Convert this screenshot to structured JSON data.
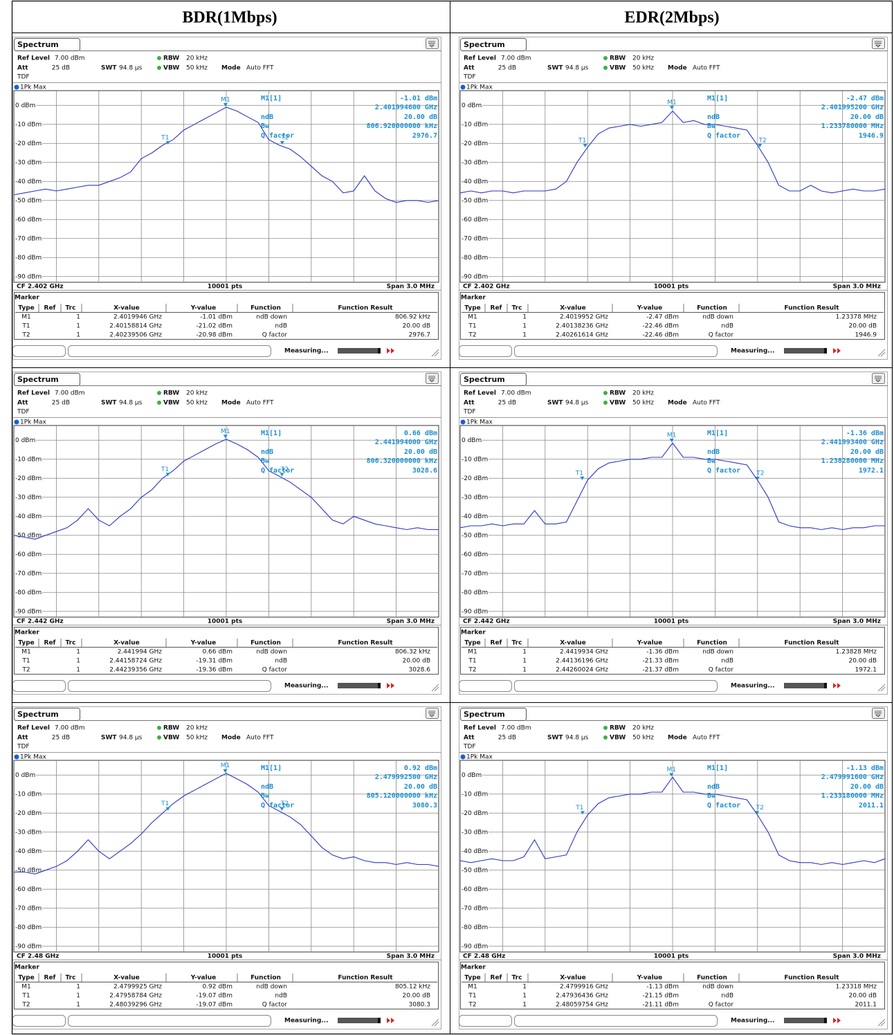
{
  "screen_common": {
    "tab": "Spectrum",
    "ref_level_label": "Ref Level",
    "ref_level": "7.00 dBm",
    "rbw_label": "RBW",
    "rbw": "20 kHz",
    "att_label": "Att",
    "att": "25 dB",
    "swt_label": "SWT",
    "swt": "94.8 µs",
    "vbw_label": "VBW",
    "vbw": "50 kHz",
    "mode_label": "Mode",
    "mode": "Auto FFT",
    "tdf": "TDF",
    "trace_label": "1Pk Max",
    "ylim": [
      -93,
      7
    ],
    "yticks": [
      {
        "value": 0,
        "label": "0 dBm"
      },
      {
        "value": -10,
        "label": "-10 dBm"
      },
      {
        "value": -20,
        "label": "-20 dBm"
      },
      {
        "value": -30,
        "label": "-30 dBm"
      },
      {
        "value": -40,
        "label": "-40 dBm"
      },
      {
        "value": -50,
        "label": "-50 dBm"
      },
      {
        "value": -60,
        "label": "-60 dBm"
      },
      {
        "value": -70,
        "label": "-70 dBm"
      },
      {
        "value": -80,
        "label": "-80 dBm"
      },
      {
        "value": -90,
        "label": "-90 dBm"
      }
    ],
    "pts": "10001 pts",
    "span": {
      "value": 3,
      "label": "Span 3.0 MHz"
    },
    "ndb_label": "ndB",
    "bw_label": "Bw",
    "q_label": "Q factor",
    "marker_title": "Marker",
    "marker_columns": [
      "Type",
      "Ref",
      "Trc",
      "X-value",
      "Y-value",
      "Function",
      "Function Result"
    ],
    "status": "Measuring..."
  },
  "table": {
    "headers": [
      "BDR(1Mbps)",
      "EDR(2Mbps)"
    ],
    "rows": [
      [
        {
          "cf": {
            "value": 2.402,
            "label": "CF 2.402 GHz"
          },
          "readout": {
            "label": "M1[1]",
            "level": "-1.01 dBm",
            "freq": "2.401994600 GHz",
            "ndb": "20.00 dB",
            "bw": "806.920000000 kHz",
            "q": "2976.7"
          },
          "trace": [
            -47,
            -46,
            -45,
            -44,
            -45,
            -44,
            -43,
            -42,
            -42,
            -40,
            -38,
            -35,
            -28,
            -25,
            -21,
            -18,
            -13,
            -10,
            -7,
            -4,
            -1,
            -3,
            -6,
            -9,
            -18,
            -21,
            -23,
            -27,
            -32,
            -37,
            -40,
            -46,
            -45,
            -37,
            -45,
            -49,
            -51,
            -50,
            -50,
            -51,
            -50
          ],
          "markers": [
            {
              "type": "M1",
              "trc": "1",
              "x": {
                "value": 2.4019946,
                "label": "2.4019946 GHz"
              },
              "y": {
                "value": -1.01,
                "label": "-1.01 dBm"
              },
              "function": "ndB down",
              "result": "806.92 kHz"
            },
            {
              "type": "T1",
              "trc": "1",
              "x": {
                "value": 2.40158814,
                "label": "2.40158814 GHz"
              },
              "y": {
                "value": -21.02,
                "label": "-21.02 dBm"
              },
              "function": "ndB",
              "result": "20.00 dB"
            },
            {
              "type": "T2",
              "trc": "1",
              "x": {
                "value": 2.40239506,
                "label": "2.40239506 GHz"
              },
              "y": {
                "value": -20.98,
                "label": "-20.98 dBm"
              },
              "function": "Q factor",
              "result": "2976.7"
            }
          ]
        },
        {
          "cf": {
            "value": 2.402,
            "label": "CF 2.402 GHz"
          },
          "readout": {
            "label": "M1[1]",
            "level": "-2.47 dBm",
            "freq": "2.401995200 GHz",
            "ndb": "20.00 dB",
            "bw": "1.233780000 MHz",
            "q": "1946.9"
          },
          "trace": [
            -46,
            -45,
            -46,
            -45,
            -45,
            -46,
            -45,
            -45,
            -45,
            -44,
            -40,
            -30,
            -22,
            -15,
            -12,
            -11,
            -10,
            -11,
            -10,
            -9,
            -3,
            -9,
            -8,
            -10,
            -10,
            -11,
            -12,
            -13,
            -21,
            -30,
            -42,
            -45,
            -45,
            -42,
            -45,
            -46,
            -45,
            -44,
            -45,
            -45,
            -44
          ],
          "markers": [
            {
              "type": "M1",
              "trc": "1",
              "x": {
                "value": 2.4019952,
                "label": "2.4019952 GHz"
              },
              "y": {
                "value": -2.47,
                "label": "-2.47 dBm"
              },
              "function": "ndB down",
              "result": "1.23378 MHz"
            },
            {
              "type": "T1",
              "trc": "1",
              "x": {
                "value": 2.40138236,
                "label": "2.40138236 GHz"
              },
              "y": {
                "value": -22.46,
                "label": "-22.46 dBm"
              },
              "function": "ndB",
              "result": "20.00 dB"
            },
            {
              "type": "T2",
              "trc": "1",
              "x": {
                "value": 2.40261614,
                "label": "2.40261614 GHz"
              },
              "y": {
                "value": -22.46,
                "label": "-22.46 dBm"
              },
              "function": "Q factor",
              "result": "1946.9"
            }
          ]
        }
      ],
      [
        {
          "cf": {
            "value": 2.442,
            "label": "CF 2.442 GHz"
          },
          "readout": {
            "label": "M1[1]",
            "level": "0.66 dBm",
            "freq": "2.441994000 GHz",
            "ndb": "20.00 dB",
            "bw": "806.320000000 kHz",
            "q": "3028.6"
          },
          "trace": [
            -50,
            -51,
            -52,
            -50,
            -48,
            -46,
            -42,
            -36,
            -42,
            -45,
            -40,
            -36,
            -30,
            -26,
            -20,
            -16,
            -11,
            -8,
            -5,
            -2,
            0.5,
            -2,
            -5,
            -9,
            -16,
            -19,
            -22,
            -26,
            -30,
            -36,
            -42,
            -44,
            -40,
            -42,
            -44,
            -45,
            -46,
            -47,
            -46,
            -47,
            -47
          ],
          "markers": [
            {
              "type": "M1",
              "trc": "1",
              "x": {
                "value": 2.441994,
                "label": "2.441994 GHz"
              },
              "y": {
                "value": 0.66,
                "label": "0.66 dBm"
              },
              "function": "ndB down",
              "result": "806.32 kHz"
            },
            {
              "type": "T1",
              "trc": "1",
              "x": {
                "value": 2.44158724,
                "label": "2.44158724 GHz"
              },
              "y": {
                "value": -19.31,
                "label": "-19.31 dBm"
              },
              "function": "ndB",
              "result": "20.00 dB"
            },
            {
              "type": "T2",
              "trc": "1",
              "x": {
                "value": 2.44239356,
                "label": "2.44239356 GHz"
              },
              "y": {
                "value": -19.36,
                "label": "-19.36 dBm"
              },
              "function": "Q factor",
              "result": "3028.6"
            }
          ]
        },
        {
          "cf": {
            "value": 2.442,
            "label": "CF 2.442 GHz"
          },
          "readout": {
            "label": "M1[1]",
            "level": "-1.36 dBm",
            "freq": "2.441993400 GHz",
            "ndb": "20.00 dB",
            "bw": "1.238280000 MHz",
            "q": "1972.1"
          },
          "trace": [
            -46,
            -45,
            -45,
            -44,
            -45,
            -44,
            -44,
            -37,
            -44,
            -44,
            -43,
            -32,
            -21,
            -15,
            -12,
            -11,
            -10,
            -10,
            -9,
            -9,
            -1.5,
            -9,
            -9,
            -10,
            -10,
            -11,
            -12,
            -13,
            -21,
            -30,
            -43,
            -45,
            -46,
            -46,
            -47,
            -46,
            -47,
            -46,
            -46,
            -45,
            -45
          ],
          "markers": [
            {
              "type": "M1",
              "trc": "1",
              "x": {
                "value": 2.4419934,
                "label": "2.4419934 GHz"
              },
              "y": {
                "value": -1.36,
                "label": "-1.36 dBm"
              },
              "function": "ndB down",
              "result": "1.23828 MHz"
            },
            {
              "type": "T1",
              "trc": "1",
              "x": {
                "value": 2.44136196,
                "label": "2.44136196 GHz"
              },
              "y": {
                "value": -21.33,
                "label": "-21.33 dBm"
              },
              "function": "ndB",
              "result": "20.00 dB"
            },
            {
              "type": "T2",
              "trc": "1",
              "x": {
                "value": 2.44260024,
                "label": "2.44260024 GHz"
              },
              "y": {
                "value": -21.37,
                "label": "-21.37 dBm"
              },
              "function": "Q factor",
              "result": "1972.1"
            }
          ]
        }
      ],
      [
        {
          "cf": {
            "value": 2.48,
            "label": "CF 2.48 GHz"
          },
          "readout": {
            "label": "M1[1]",
            "level": "0.92 dBm",
            "freq": "2.479992500 GHz",
            "ndb": "20.00 dB",
            "bw": "805.120000000 kHz",
            "q": "3080.3"
          },
          "trace": [
            -51,
            -51,
            -52,
            -50,
            -48,
            -45,
            -40,
            -34,
            -40,
            -44,
            -40,
            -36,
            -31,
            -25,
            -20,
            -15,
            -11,
            -8,
            -5,
            -2,
            0.9,
            -2,
            -5,
            -9,
            -16,
            -19,
            -22,
            -26,
            -32,
            -38,
            -42,
            -44,
            -43,
            -45,
            -46,
            -46,
            -47,
            -46,
            -47,
            -47,
            -48
          ],
          "markers": [
            {
              "type": "M1",
              "trc": "1",
              "x": {
                "value": 2.4799925,
                "label": "2.4799925 GHz"
              },
              "y": {
                "value": 0.92,
                "label": "0.92 dBm"
              },
              "function": "ndB down",
              "result": "805.12 kHz"
            },
            {
              "type": "T1",
              "trc": "1",
              "x": {
                "value": 2.47958784,
                "label": "2.47958784 GHz"
              },
              "y": {
                "value": -19.07,
                "label": "-19.07 dBm"
              },
              "function": "ndB",
              "result": "20.00 dB"
            },
            {
              "type": "T2",
              "trc": "1",
              "x": {
                "value": 2.48039296,
                "label": "2.48039296 GHz"
              },
              "y": {
                "value": -19.07,
                "label": "-19.07 dBm"
              },
              "function": "Q factor",
              "result": "3080.3"
            }
          ]
        },
        {
          "cf": {
            "value": 2.48,
            "label": "CF 2.48 GHz"
          },
          "readout": {
            "label": "M1[1]",
            "level": "-1.13 dBm",
            "freq": "2.479991600 GHz",
            "ndb": "20.00 dB",
            "bw": "1.233180000 MHz",
            "q": "2011.1"
          },
          "trace": [
            -45,
            -46,
            -45,
            -44,
            -45,
            -45,
            -43,
            -34,
            -44,
            -43,
            -42,
            -30,
            -21,
            -15,
            -12,
            -11,
            -10,
            -10,
            -9,
            -9,
            -1.1,
            -9,
            -9,
            -10,
            -10,
            -11,
            -12,
            -13,
            -21,
            -30,
            -42,
            -45,
            -46,
            -46,
            -47,
            -46,
            -47,
            -46,
            -45,
            -46,
            -44
          ],
          "markers": [
            {
              "type": "M1",
              "trc": "1",
              "x": {
                "value": 2.4799916,
                "label": "2.4799916 GHz"
              },
              "y": {
                "value": -1.13,
                "label": "-1.13 dBm"
              },
              "function": "ndB down",
              "result": "1.23318 MHz"
            },
            {
              "type": "T1",
              "trc": "1",
              "x": {
                "value": 2.47936436,
                "label": "2.47936436 GHz"
              },
              "y": {
                "value": -21.15,
                "label": "-21.15 dBm"
              },
              "function": "ndB",
              "result": "20.00 dB"
            },
            {
              "type": "T2",
              "trc": "1",
              "x": {
                "value": 2.48059754,
                "label": "2.48059754 GHz"
              },
              "y": {
                "value": -21.11,
                "label": "-21.11 dBm"
              },
              "function": "Q factor",
              "result": "2011.1"
            }
          ]
        }
      ]
    ]
  }
}
